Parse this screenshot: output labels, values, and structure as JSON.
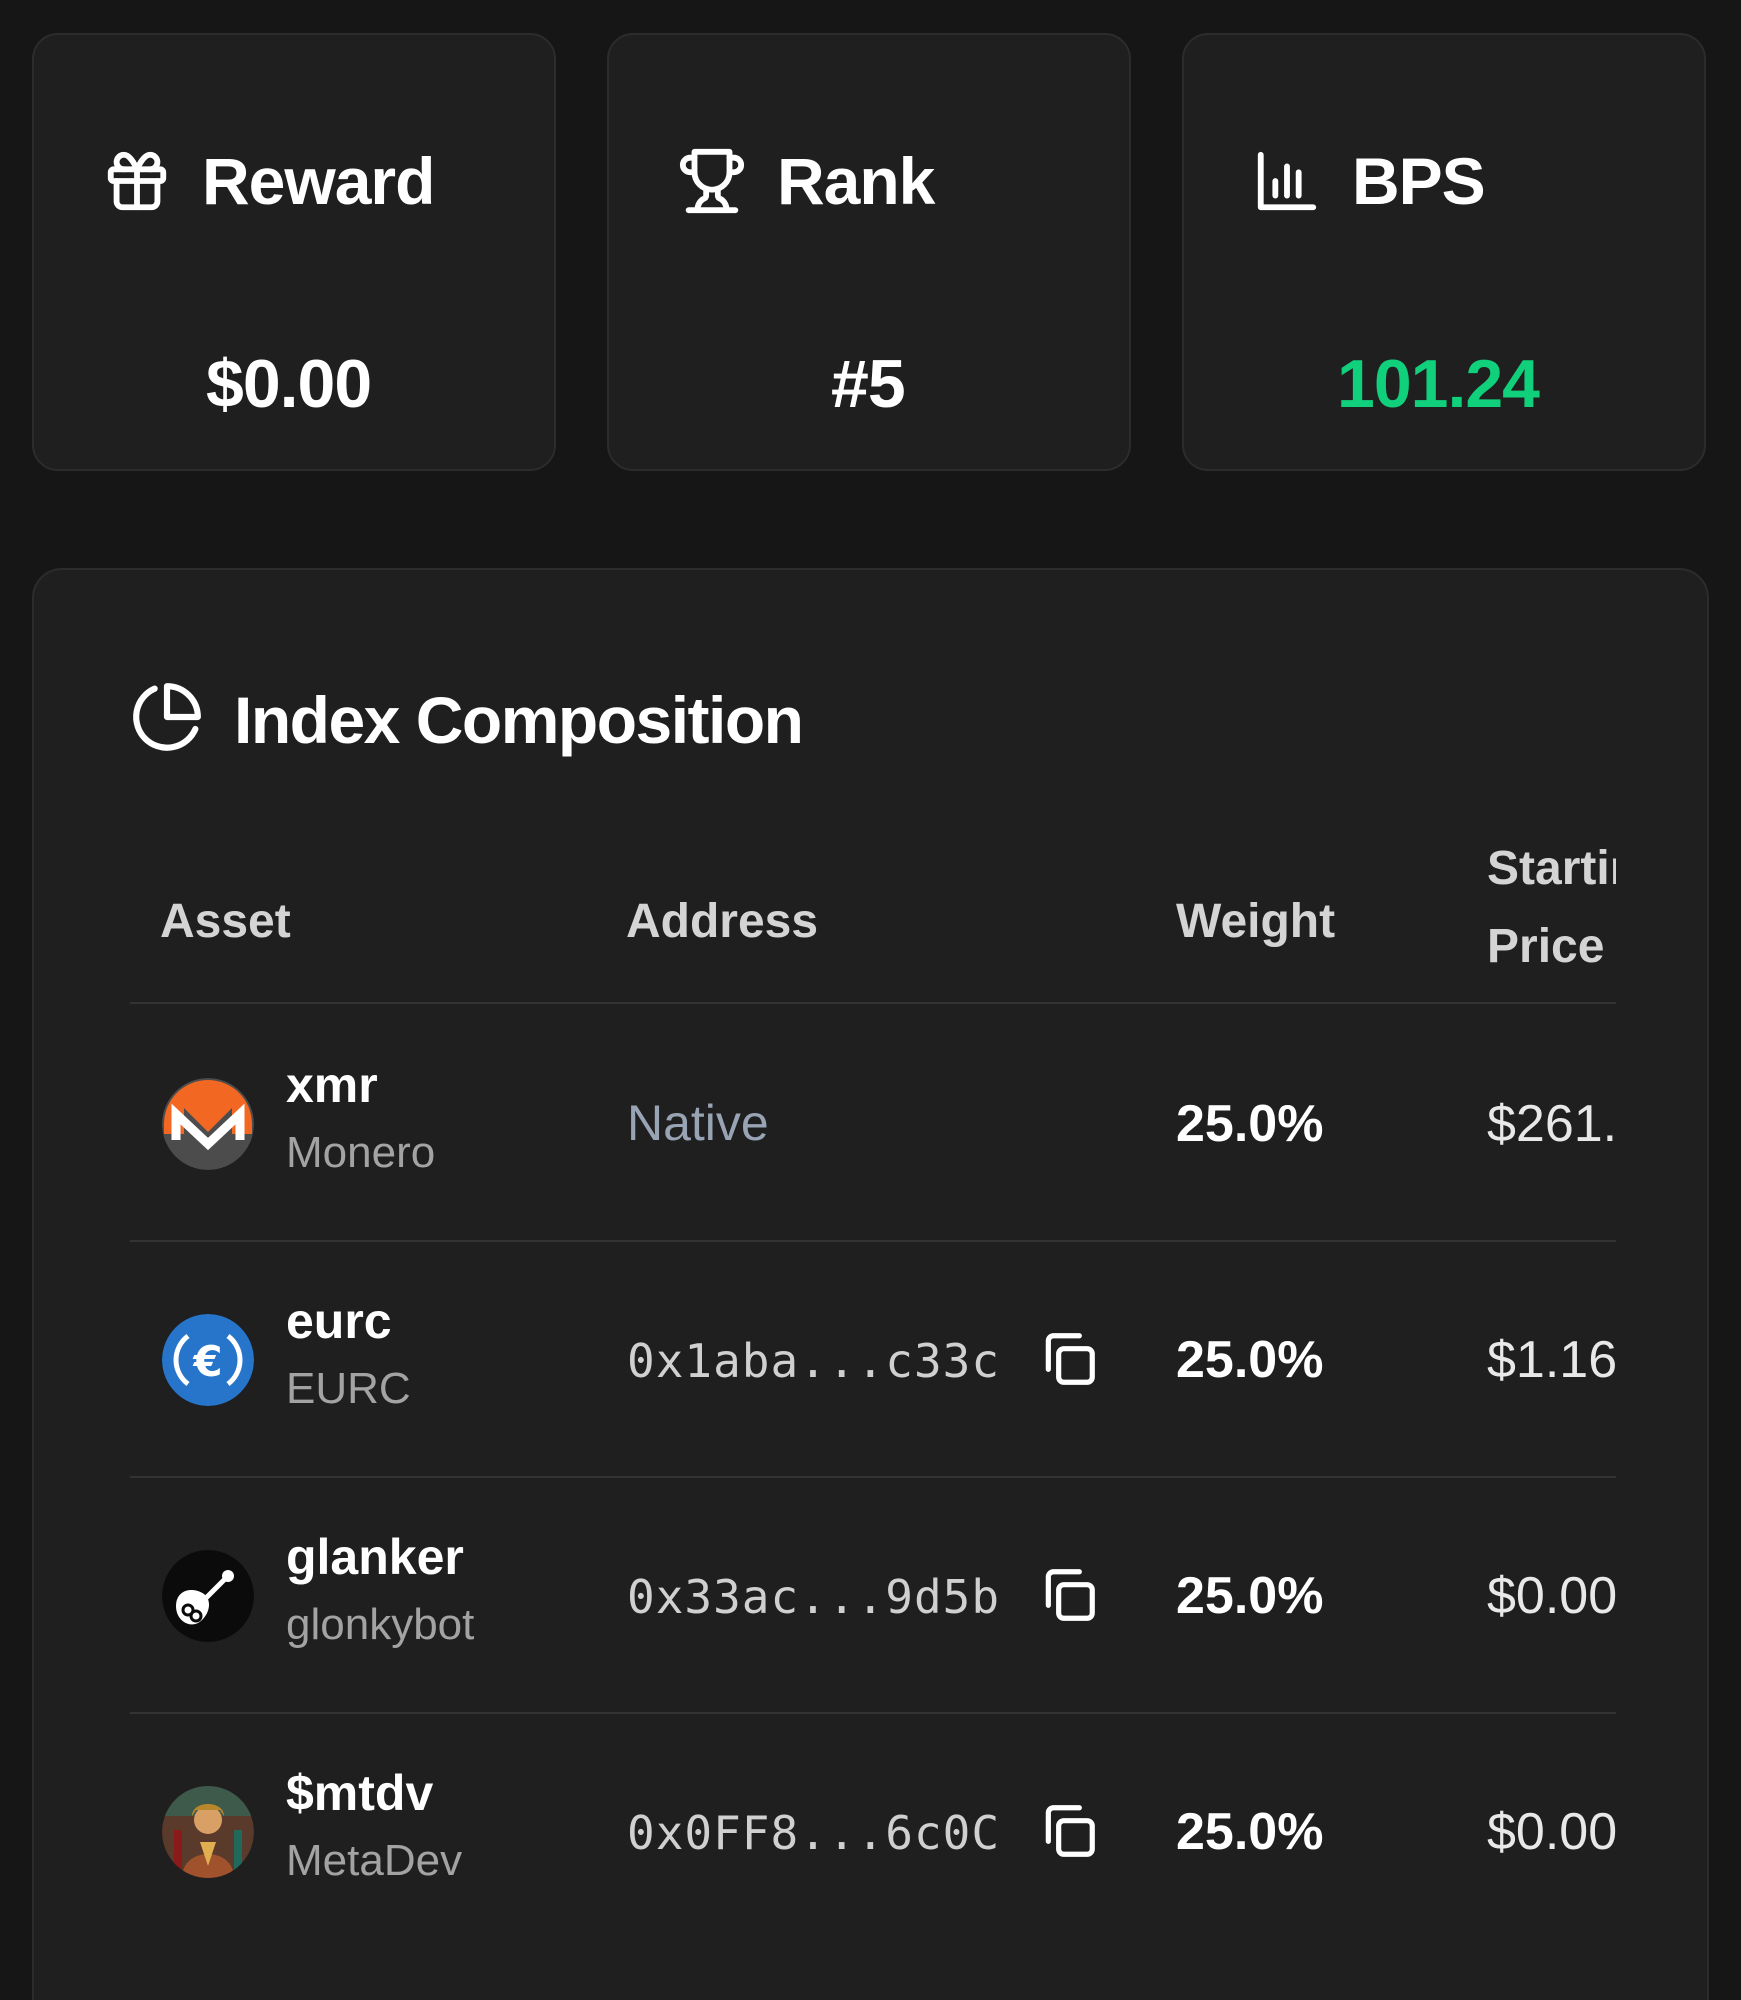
{
  "stats": {
    "reward": {
      "label": "Reward",
      "value": "$0.00",
      "icon": "gift-icon"
    },
    "rank": {
      "label": "Rank",
      "value": "#5",
      "icon": "trophy-icon"
    },
    "bps": {
      "label": "BPS",
      "value": "101.24",
      "icon": "bar-chart-icon",
      "value_color": "#10d07c"
    }
  },
  "composition": {
    "title": "Index Composition",
    "icon": "pie-chart-icon",
    "columns": {
      "asset": "Asset",
      "address": "Address",
      "weight": "Weight",
      "price": "Starting Price"
    },
    "rows": [
      {
        "symbol": "xmr",
        "name": "Monero",
        "address": "Native",
        "weight": "25.0%",
        "price": "$261.",
        "icon": "monero-logo"
      },
      {
        "symbol": "eurc",
        "name": "EURC",
        "address": "0x1aba...c33c",
        "weight": "25.0%",
        "price": "$1.16",
        "icon": "eurc-logo"
      },
      {
        "symbol": "glanker",
        "name": "glonkybot",
        "address": "0x33ac...9d5b",
        "weight": "25.0%",
        "price": "$0.00",
        "icon": "glonkybot-avatar"
      },
      {
        "symbol": "$mtdv",
        "name": "MetaDev",
        "address": "0x0FF8...6c0C",
        "weight": "25.0%",
        "price": "$0.00",
        "icon": "metadev-avatar"
      }
    ]
  },
  "colors": {
    "background": "#161616",
    "card": "#1f1f1f",
    "positive": "#10d07c",
    "muted": "#a3a3a3"
  }
}
